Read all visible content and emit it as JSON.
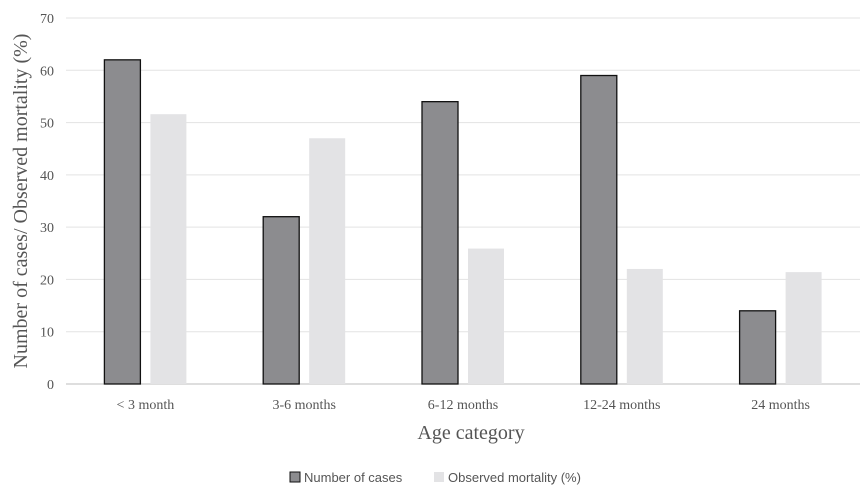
{
  "chart_data": {
    "type": "bar",
    "title": "",
    "xlabel": "Age category",
    "ylabel": "Number of cases/ Observed mortality (%)",
    "categories": [
      "< 3 month",
      "3-6 months",
      "6-12 months",
      "12-24 months",
      "24 months"
    ],
    "series": [
      {
        "name": "Number of cases",
        "values": [
          62,
          32,
          54,
          59,
          14
        ],
        "color": "#8c8c8f",
        "stroke": "#111111"
      },
      {
        "name": "Observed mortality (%)",
        "values": [
          51.6,
          47,
          25.9,
          22,
          21.4
        ],
        "color": "#e3e3e5",
        "stroke": "none"
      }
    ],
    "ylim": [
      0,
      70
    ],
    "yticks": [
      0,
      10,
      20,
      30,
      40,
      50,
      60,
      70
    ],
    "grid": true,
    "legend_position": "bottom"
  }
}
